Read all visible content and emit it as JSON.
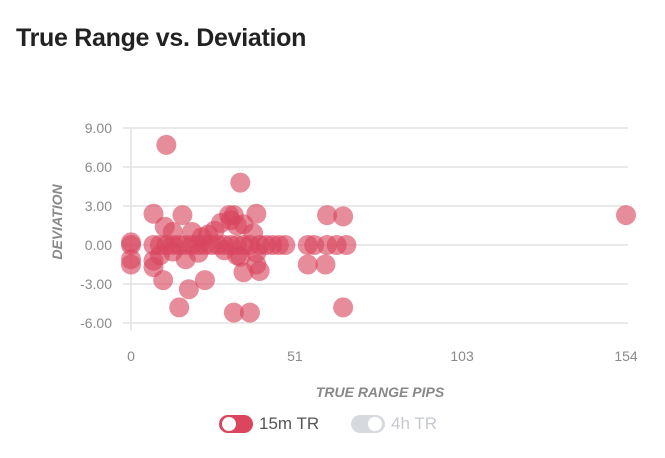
{
  "chart_data": {
    "type": "scatter",
    "title": "True Range vs. Deviation",
    "xlabel": "TRUE RANGE PIPS",
    "ylabel": "DEVIATION",
    "xlim": [
      0,
      154
    ],
    "ylim": [
      -6,
      9
    ],
    "xticks": [
      "0",
      "51",
      "103",
      "154"
    ],
    "yticks": [
      "9.00",
      "6.00",
      "3.00",
      "0.00",
      "-3.00",
      "-6.00"
    ],
    "grid": true,
    "legend_position": "bottom",
    "series": [
      {
        "name": "15m TR",
        "color": "#d9465e",
        "visible": true,
        "points": [
          [
            0,
            0
          ],
          [
            0,
            -1.5
          ],
          [
            0,
            -1.1
          ],
          [
            0,
            0.2
          ],
          [
            11,
            7.7
          ],
          [
            34,
            4.8
          ],
          [
            7,
            2.4
          ],
          [
            16,
            2.3
          ],
          [
            30.5,
            2.3
          ],
          [
            32,
            2.3
          ],
          [
            39,
            2.4
          ],
          [
            61,
            2.3
          ],
          [
            66,
            2.2
          ],
          [
            154,
            2.3
          ],
          [
            10.5,
            1.4
          ],
          [
            13,
            1.0
          ],
          [
            19,
            1.0
          ],
          [
            26,
            1.1
          ],
          [
            28,
            1.7
          ],
          [
            31,
            1.9
          ],
          [
            33,
            1.5
          ],
          [
            35,
            1.6
          ],
          [
            38,
            0.9
          ],
          [
            22,
            0.6
          ],
          [
            24,
            0.8
          ],
          [
            7,
            0
          ],
          [
            9,
            0
          ],
          [
            11,
            0
          ],
          [
            13,
            0
          ],
          [
            15,
            0
          ],
          [
            17,
            0
          ],
          [
            19,
            0
          ],
          [
            21,
            0
          ],
          [
            23,
            0
          ],
          [
            25,
            0
          ],
          [
            27,
            0
          ],
          [
            29,
            0
          ],
          [
            31,
            0
          ],
          [
            33,
            0
          ],
          [
            35,
            0
          ],
          [
            37,
            0
          ],
          [
            40,
            0
          ],
          [
            42,
            0
          ],
          [
            44,
            0
          ],
          [
            46,
            0
          ],
          [
            48,
            0
          ],
          [
            55,
            0
          ],
          [
            57,
            0
          ],
          [
            61,
            0
          ],
          [
            64,
            0
          ],
          [
            67,
            0
          ],
          [
            7,
            -1.2
          ],
          [
            9,
            -0.8
          ],
          [
            13,
            -0.5
          ],
          [
            17,
            -1.1
          ],
          [
            21,
            -0.6
          ],
          [
            29,
            -0.4
          ],
          [
            34,
            -0.9
          ],
          [
            39,
            -0.6
          ],
          [
            7,
            -1.7
          ],
          [
            10,
            -2.7
          ],
          [
            23,
            -2.7
          ],
          [
            18,
            -3.4
          ],
          [
            15,
            -4.8
          ],
          [
            32,
            -5.2
          ],
          [
            37,
            -5.2
          ],
          [
            66,
            -4.8
          ],
          [
            55,
            -1.5
          ],
          [
            60.5,
            -1.5
          ],
          [
            40,
            -2
          ],
          [
            35,
            -2.1
          ],
          [
            33,
            -0.8
          ],
          [
            39,
            -1.5
          ]
        ]
      },
      {
        "name": "4h TR",
        "color": "#c8cdd3",
        "visible": false,
        "points": []
      }
    ]
  }
}
